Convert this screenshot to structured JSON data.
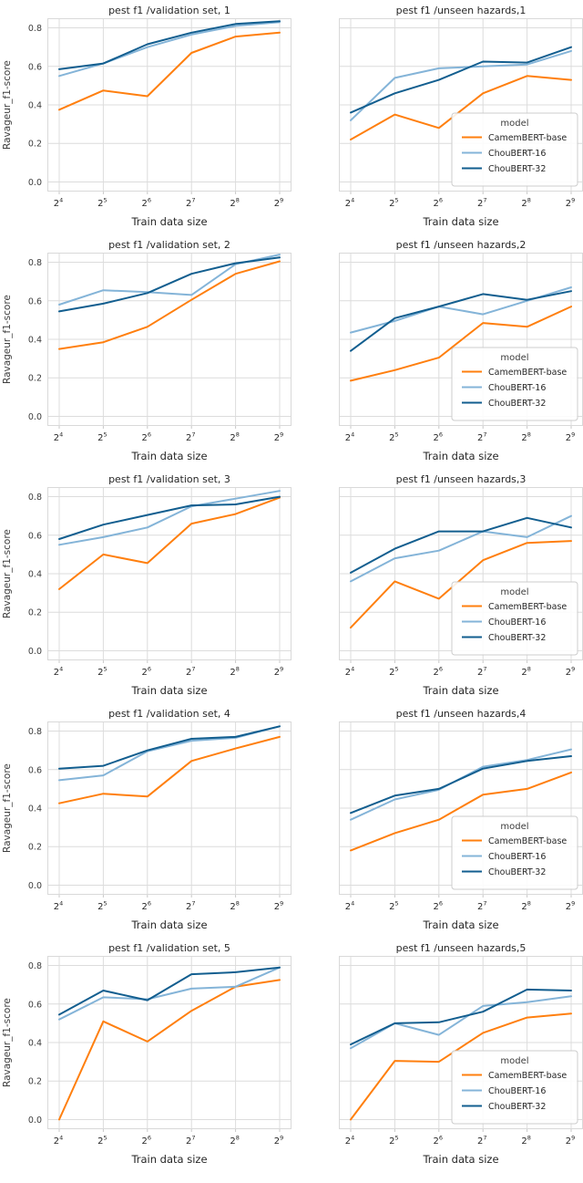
{
  "palette": {
    "CamemBERT-base": "#ff7f0e",
    "ChouBERT-16": "#84b4d8",
    "ChouBERT-32": "#125e8f"
  },
  "style": {
    "grid_color": "#dcdcdc",
    "frame_color": "#d9d9d9",
    "tick_color": "#c8c8c8",
    "tick_label_color": "#3d3d3d",
    "legend_border_color": "#cccccc",
    "background": "#ffffff"
  },
  "legend": {
    "title": "model",
    "entries": [
      "CamemBERT-base",
      "ChouBERT-16",
      "ChouBERT-32"
    ]
  },
  "chart_data": [
    {
      "type": "line",
      "title": "pest f1 /validation set, 1",
      "xlabel": "Train data size",
      "ylabel": "Ravageur_f1-score",
      "categories": [
        "2^4",
        "2^5",
        "2^6",
        "2^7",
        "2^8",
        "2^9"
      ],
      "yticks": [
        0.0,
        0.2,
        0.4,
        0.6,
        0.8
      ],
      "ylim": [
        -0.05,
        0.85
      ],
      "legend": false,
      "series": [
        {
          "name": "CamemBERT-base",
          "values": [
            0.375,
            0.475,
            0.445,
            0.67,
            0.755,
            0.775
          ]
        },
        {
          "name": "ChouBERT-16",
          "values": [
            0.55,
            0.615,
            0.7,
            0.765,
            0.81,
            0.83
          ]
        },
        {
          "name": "ChouBERT-32",
          "values": [
            0.585,
            0.615,
            0.715,
            0.775,
            0.82,
            0.835
          ]
        }
      ]
    },
    {
      "type": "line",
      "title": "pest f1 /unseen hazards,1",
      "xlabel": "Train data size",
      "ylabel": "",
      "categories": [
        "2^4",
        "2^5",
        "2^6",
        "2^7",
        "2^8",
        "2^9"
      ],
      "yticks": [
        0.0,
        0.2,
        0.4,
        0.6,
        0.8
      ],
      "ylim": [
        -0.05,
        0.85
      ],
      "legend": true,
      "series": [
        {
          "name": "CamemBERT-base",
          "values": [
            0.22,
            0.35,
            0.28,
            0.46,
            0.55,
            0.53
          ]
        },
        {
          "name": "ChouBERT-16",
          "values": [
            0.32,
            0.54,
            0.59,
            0.6,
            0.61,
            0.68
          ]
        },
        {
          "name": "ChouBERT-32",
          "values": [
            0.36,
            0.46,
            0.53,
            0.625,
            0.62,
            0.7
          ]
        }
      ]
    },
    {
      "type": "line",
      "title": "pest f1 /validation set, 2",
      "xlabel": "Train data size",
      "ylabel": "Ravageur_f1-score",
      "categories": [
        "2^4",
        "2^5",
        "2^6",
        "2^7",
        "2^8",
        "2^9"
      ],
      "yticks": [
        0.0,
        0.2,
        0.4,
        0.6,
        0.8
      ],
      "ylim": [
        -0.05,
        0.85
      ],
      "legend": false,
      "series": [
        {
          "name": "CamemBERT-base",
          "values": [
            0.35,
            0.385,
            0.465,
            0.605,
            0.74,
            0.805
          ]
        },
        {
          "name": "ChouBERT-16",
          "values": [
            0.58,
            0.655,
            0.645,
            0.63,
            0.79,
            0.84
          ]
        },
        {
          "name": "ChouBERT-32",
          "values": [
            0.545,
            0.585,
            0.64,
            0.74,
            0.795,
            0.825
          ]
        }
      ]
    },
    {
      "type": "line",
      "title": "pest f1 /unseen hazards,2",
      "xlabel": "Train data size",
      "ylabel": "",
      "categories": [
        "2^4",
        "2^5",
        "2^6",
        "2^7",
        "2^8",
        "2^9"
      ],
      "yticks": [
        0.0,
        0.2,
        0.4,
        0.6,
        0.8
      ],
      "ylim": [
        -0.05,
        0.85
      ],
      "legend": true,
      "series": [
        {
          "name": "CamemBERT-base",
          "values": [
            0.185,
            0.24,
            0.305,
            0.485,
            0.465,
            0.57
          ]
        },
        {
          "name": "ChouBERT-16",
          "values": [
            0.435,
            0.495,
            0.57,
            0.53,
            0.6,
            0.67
          ]
        },
        {
          "name": "ChouBERT-32",
          "values": [
            0.34,
            0.51,
            0.57,
            0.635,
            0.605,
            0.65
          ]
        }
      ]
    },
    {
      "type": "line",
      "title": "pest f1 /validation set, 3",
      "xlabel": "Train data size",
      "ylabel": "Ravageur_f1-score",
      "categories": [
        "2^4",
        "2^5",
        "2^6",
        "2^7",
        "2^8",
        "2^9"
      ],
      "yticks": [
        0.0,
        0.2,
        0.4,
        0.6,
        0.8
      ],
      "ylim": [
        -0.05,
        0.85
      ],
      "legend": false,
      "series": [
        {
          "name": "CamemBERT-base",
          "values": [
            0.32,
            0.5,
            0.455,
            0.66,
            0.71,
            0.795
          ]
        },
        {
          "name": "ChouBERT-16",
          "values": [
            0.55,
            0.59,
            0.64,
            0.75,
            0.79,
            0.83
          ]
        },
        {
          "name": "ChouBERT-32",
          "values": [
            0.58,
            0.655,
            0.705,
            0.755,
            0.76,
            0.8
          ]
        }
      ]
    },
    {
      "type": "line",
      "title": "pest f1 /unseen hazards,3",
      "xlabel": "Train data size",
      "ylabel": "",
      "categories": [
        "2^4",
        "2^5",
        "2^6",
        "2^7",
        "2^8",
        "2^9"
      ],
      "yticks": [
        0.0,
        0.2,
        0.4,
        0.6,
        0.8
      ],
      "ylim": [
        -0.05,
        0.85
      ],
      "legend": true,
      "series": [
        {
          "name": "CamemBERT-base",
          "values": [
            0.12,
            0.36,
            0.27,
            0.47,
            0.56,
            0.57
          ]
        },
        {
          "name": "ChouBERT-16",
          "values": [
            0.36,
            0.48,
            0.52,
            0.62,
            0.59,
            0.7
          ]
        },
        {
          "name": "ChouBERT-32",
          "values": [
            0.405,
            0.53,
            0.62,
            0.62,
            0.69,
            0.64
          ]
        }
      ]
    },
    {
      "type": "line",
      "title": "pest f1 /validation set, 4",
      "xlabel": "Train data size",
      "ylabel": "Ravageur_f1-score",
      "categories": [
        "2^4",
        "2^5",
        "2^6",
        "2^7",
        "2^8",
        "2^9"
      ],
      "yticks": [
        0.0,
        0.2,
        0.4,
        0.6,
        0.8
      ],
      "ylim": [
        -0.05,
        0.85
      ],
      "legend": false,
      "series": [
        {
          "name": "CamemBERT-base",
          "values": [
            0.425,
            0.475,
            0.46,
            0.645,
            0.71,
            0.77
          ]
        },
        {
          "name": "ChouBERT-16",
          "values": [
            0.545,
            0.57,
            0.695,
            0.75,
            0.765,
            0.825
          ]
        },
        {
          "name": "ChouBERT-32",
          "values": [
            0.605,
            0.62,
            0.7,
            0.76,
            0.77,
            0.825
          ]
        }
      ]
    },
    {
      "type": "line",
      "title": "pest f1 /unseen hazards,4",
      "xlabel": "Train data size",
      "ylabel": "",
      "categories": [
        "2^4",
        "2^5",
        "2^6",
        "2^7",
        "2^8",
        "2^9"
      ],
      "yticks": [
        0.0,
        0.2,
        0.4,
        0.6,
        0.8
      ],
      "ylim": [
        -0.05,
        0.85
      ],
      "legend": true,
      "series": [
        {
          "name": "CamemBERT-base",
          "values": [
            0.18,
            0.27,
            0.34,
            0.47,
            0.5,
            0.585
          ]
        },
        {
          "name": "ChouBERT-16",
          "values": [
            0.34,
            0.445,
            0.495,
            0.615,
            0.65,
            0.705
          ]
        },
        {
          "name": "ChouBERT-32",
          "values": [
            0.375,
            0.465,
            0.5,
            0.605,
            0.645,
            0.67
          ]
        }
      ]
    },
    {
      "type": "line",
      "title": "pest f1 /validation set, 5",
      "xlabel": "Train data size",
      "ylabel": "Ravageur_f1-score",
      "categories": [
        "2^4",
        "2^5",
        "2^6",
        "2^7",
        "2^8",
        "2^9"
      ],
      "yticks": [
        0.0,
        0.2,
        0.4,
        0.6,
        0.8
      ],
      "ylim": [
        -0.05,
        0.85
      ],
      "legend": false,
      "series": [
        {
          "name": "CamemBERT-base",
          "values": [
            0.0,
            0.51,
            0.405,
            0.565,
            0.69,
            0.725
          ]
        },
        {
          "name": "ChouBERT-16",
          "values": [
            0.52,
            0.635,
            0.625,
            0.68,
            0.69,
            0.79
          ]
        },
        {
          "name": "ChouBERT-32",
          "values": [
            0.545,
            0.67,
            0.62,
            0.755,
            0.765,
            0.79
          ]
        }
      ]
    },
    {
      "type": "line",
      "title": "pest f1 /unseen hazards,5",
      "xlabel": "Train data size",
      "ylabel": "",
      "categories": [
        "2^4",
        "2^5",
        "2^6",
        "2^7",
        "2^8",
        "2^9"
      ],
      "yticks": [
        0.0,
        0.2,
        0.4,
        0.6,
        0.8
      ],
      "ylim": [
        -0.05,
        0.85
      ],
      "legend": true,
      "series": [
        {
          "name": "CamemBERT-base",
          "values": [
            0.0,
            0.305,
            0.3,
            0.45,
            0.53,
            0.55
          ]
        },
        {
          "name": "ChouBERT-16",
          "values": [
            0.37,
            0.5,
            0.44,
            0.59,
            0.61,
            0.64
          ]
        },
        {
          "name": "ChouBERT-32",
          "values": [
            0.39,
            0.5,
            0.505,
            0.56,
            0.675,
            0.67
          ]
        }
      ]
    }
  ]
}
